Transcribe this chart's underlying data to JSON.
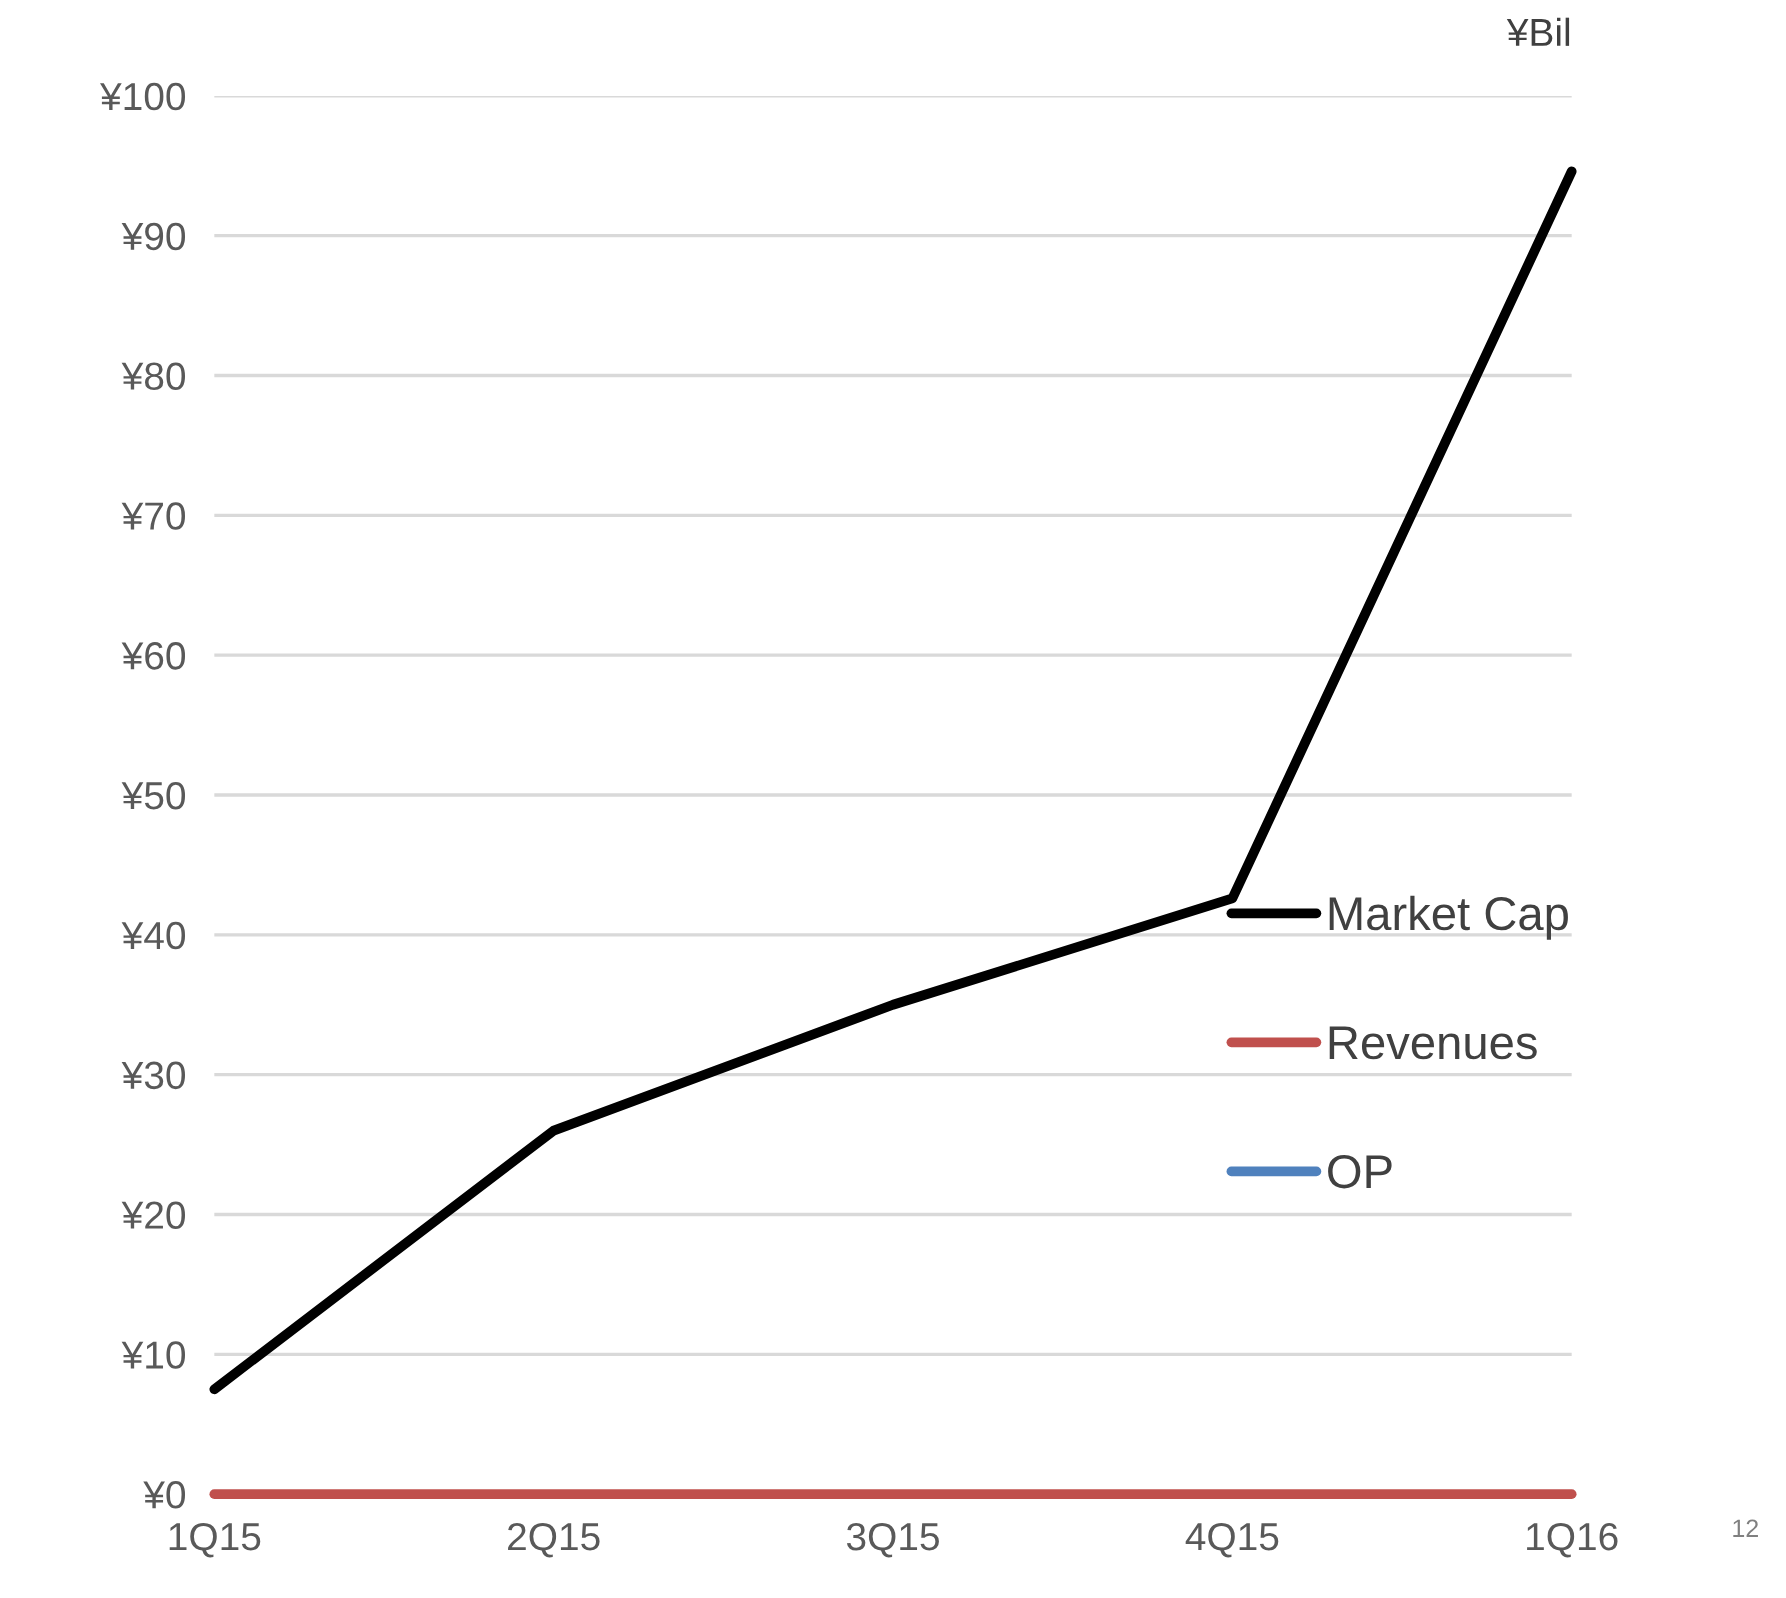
{
  "chart_data": {
    "type": "line",
    "ylabel": "¥Bil",
    "categories": [
      "1Q15",
      "2Q15",
      "3Q15",
      "4Q15",
      "1Q16"
    ],
    "series": [
      {
        "name": "Market Cap",
        "color": "#000000",
        "values": [
          7.5,
          26,
          35,
          42.6,
          94.6
        ]
      },
      {
        "name": "Revenues",
        "color": "#c0504d",
        "values": [
          0,
          0,
          0,
          0,
          0
        ]
      },
      {
        "name": "OP",
        "color": "#4f81bd",
        "values": [
          null,
          null,
          null,
          null,
          null
        ]
      }
    ],
    "ylim": [
      0,
      100
    ],
    "yticks": [
      {
        "value": 0,
        "label": "¥0"
      },
      {
        "value": 10,
        "label": "¥10"
      },
      {
        "value": 20,
        "label": "¥20"
      },
      {
        "value": 30,
        "label": "¥30"
      },
      {
        "value": 40,
        "label": "¥40"
      },
      {
        "value": 50,
        "label": "¥50"
      },
      {
        "value": 60,
        "label": "¥60"
      },
      {
        "value": 70,
        "label": "¥70"
      },
      {
        "value": 80,
        "label": "¥80"
      },
      {
        "value": 90,
        "label": "¥90"
      },
      {
        "value": 100,
        "label": "¥100"
      }
    ],
    "grid": "y",
    "legend": "center right",
    "line_style": "solid",
    "marker": "none",
    "annotations": [
      "12"
    ]
  }
}
